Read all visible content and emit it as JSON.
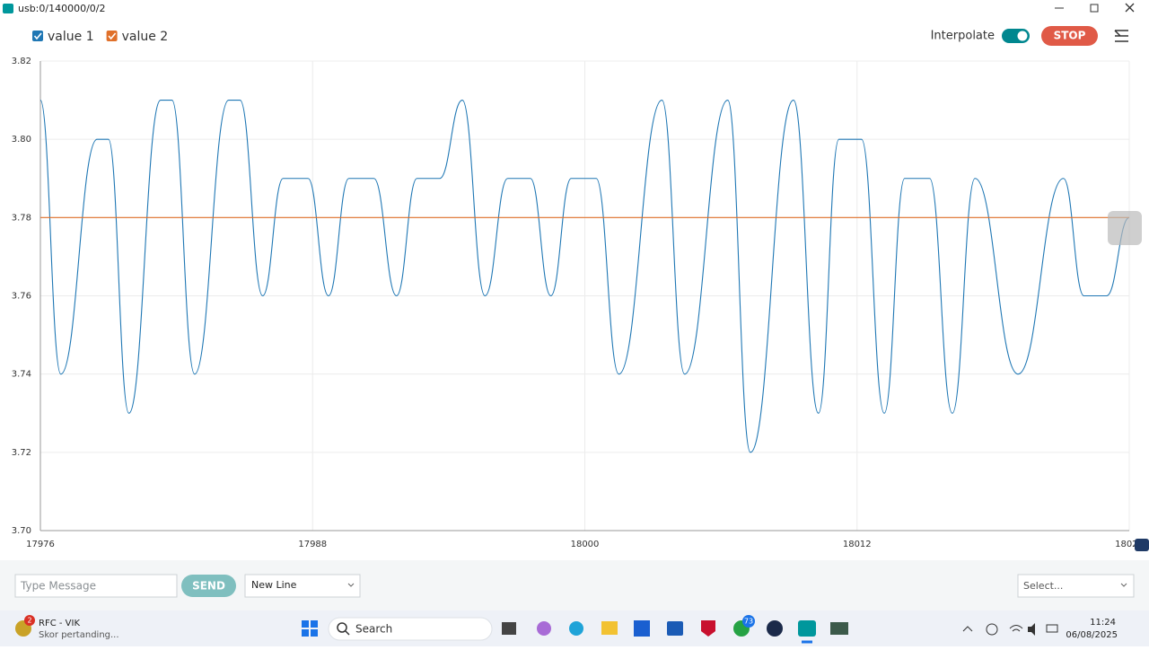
{
  "window": {
    "title": "usb:0/140000/0/2"
  },
  "toolbar": {
    "interpolate_label": "Interpolate",
    "stop_button": "STOP"
  },
  "chart_data": {
    "type": "line",
    "xlim": [
      17976,
      18024
    ],
    "xticks": [
      17976,
      17988,
      18000,
      18012,
      18024
    ],
    "ylim": [
      3.7,
      3.82
    ],
    "yticks": [
      {
        "value": 3.7,
        "label": "3.70"
      },
      3.72,
      3.74,
      3.76,
      3.78,
      {
        "value": 3.8,
        "label": "3.80"
      },
      3.82
    ],
    "grid": true,
    "series": [
      {
        "name": "value 1",
        "color": "#1f77b4",
        "x": [
          17976,
          17976.9,
          17978.5,
          17979,
          17979.9,
          17981.3,
          17981.8,
          17982.8,
          17984.3,
          17984.8,
          17985.8,
          17986.7,
          17987.8,
          17988.7,
          17989.6,
          17990.7,
          17991.7,
          17992.6,
          17993.6,
          17994.6,
          17995.6,
          17996.6,
          17997.6,
          17998.5,
          17999.4,
          18000.5,
          18001.5,
          18003.4,
          18004.4,
          18006.3,
          18007.3,
          18009.2,
          18010.3,
          18011.2,
          18012.2,
          18013.2,
          18014.1,
          18015.2,
          18016.2,
          18017.2,
          18019.1,
          18021.1,
          18022,
          18023,
          18024
        ],
        "values": [
          3.81,
          3.74,
          3.8,
          3.8,
          3.73,
          3.81,
          3.81,
          3.74,
          3.81,
          3.81,
          3.76,
          3.79,
          3.79,
          3.76,
          3.79,
          3.79,
          3.76,
          3.79,
          3.79,
          3.81,
          3.76,
          3.79,
          3.79,
          3.76,
          3.79,
          3.79,
          3.74,
          3.81,
          3.74,
          3.81,
          3.72,
          3.81,
          3.73,
          3.8,
          3.8,
          3.73,
          3.79,
          3.79,
          3.73,
          3.79,
          3.74,
          3.79,
          3.76,
          3.76,
          3.78
        ]
      },
      {
        "name": "value 2",
        "color": "#e0702a",
        "x": [
          17976,
          18024
        ],
        "values": [
          3.78,
          3.78
        ]
      }
    ]
  },
  "message_bar": {
    "placeholder": "Type Message",
    "send_button": "SEND",
    "line_ending": "New Line",
    "baud_select": "Select..."
  },
  "taskbar": {
    "app_badge": "2",
    "app_title": "RFC - VIK",
    "app_subtitle": "Skor pertanding...",
    "search": "Search",
    "whatsapp_badge": "73",
    "time": "11:24",
    "date": "06/08/2025"
  }
}
